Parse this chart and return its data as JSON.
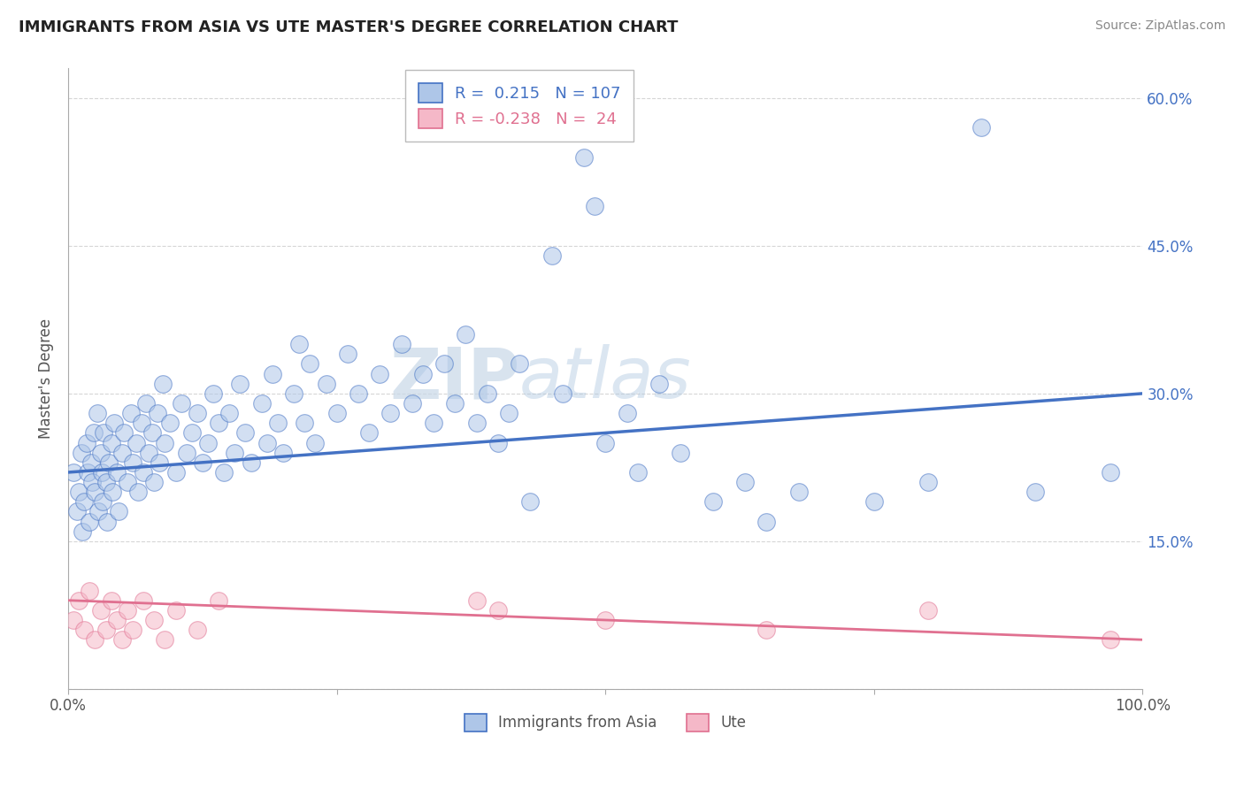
{
  "title": "IMMIGRANTS FROM ASIA VS UTE MASTER'S DEGREE CORRELATION CHART",
  "source_text": "Source: ZipAtlas.com",
  "ylabel": "Master's Degree",
  "xlim": [
    0,
    100
  ],
  "ylim": [
    0,
    63
  ],
  "yticks": [
    0,
    15,
    30,
    45,
    60
  ],
  "ytick_labels": [
    "",
    "15.0%",
    "30.0%",
    "45.0%",
    "60.0%"
  ],
  "blue_r": "0.215",
  "blue_n": "107",
  "pink_r": "-0.238",
  "pink_n": "24",
  "legend_label_blue": "Immigrants from Asia",
  "legend_label_pink": "Ute",
  "blue_color": "#aec6e8",
  "pink_color": "#f5b8c8",
  "blue_line_color": "#4472c4",
  "pink_line_color": "#e07090",
  "blue_scatter": [
    [
      0.5,
      22
    ],
    [
      0.8,
      18
    ],
    [
      1.0,
      20
    ],
    [
      1.2,
      24
    ],
    [
      1.3,
      16
    ],
    [
      1.5,
      19
    ],
    [
      1.7,
      25
    ],
    [
      1.8,
      22
    ],
    [
      2.0,
      17
    ],
    [
      2.1,
      23
    ],
    [
      2.2,
      21
    ],
    [
      2.4,
      26
    ],
    [
      2.5,
      20
    ],
    [
      2.7,
      28
    ],
    [
      2.8,
      18
    ],
    [
      3.0,
      24
    ],
    [
      3.1,
      22
    ],
    [
      3.2,
      19
    ],
    [
      3.3,
      26
    ],
    [
      3.5,
      21
    ],
    [
      3.6,
      17
    ],
    [
      3.8,
      23
    ],
    [
      4.0,
      25
    ],
    [
      4.1,
      20
    ],
    [
      4.3,
      27
    ],
    [
      4.5,
      22
    ],
    [
      4.7,
      18
    ],
    [
      5.0,
      24
    ],
    [
      5.2,
      26
    ],
    [
      5.5,
      21
    ],
    [
      5.8,
      28
    ],
    [
      6.0,
      23
    ],
    [
      6.3,
      25
    ],
    [
      6.5,
      20
    ],
    [
      6.8,
      27
    ],
    [
      7.0,
      22
    ],
    [
      7.2,
      29
    ],
    [
      7.5,
      24
    ],
    [
      7.8,
      26
    ],
    [
      8.0,
      21
    ],
    [
      8.3,
      28
    ],
    [
      8.5,
      23
    ],
    [
      8.8,
      31
    ],
    [
      9.0,
      25
    ],
    [
      9.5,
      27
    ],
    [
      10.0,
      22
    ],
    [
      10.5,
      29
    ],
    [
      11.0,
      24
    ],
    [
      11.5,
      26
    ],
    [
      12.0,
      28
    ],
    [
      12.5,
      23
    ],
    [
      13.0,
      25
    ],
    [
      13.5,
      30
    ],
    [
      14.0,
      27
    ],
    [
      14.5,
      22
    ],
    [
      15.0,
      28
    ],
    [
      15.5,
      24
    ],
    [
      16.0,
      31
    ],
    [
      16.5,
      26
    ],
    [
      17.0,
      23
    ],
    [
      18.0,
      29
    ],
    [
      18.5,
      25
    ],
    [
      19.0,
      32
    ],
    [
      19.5,
      27
    ],
    [
      20.0,
      24
    ],
    [
      21.0,
      30
    ],
    [
      21.5,
      35
    ],
    [
      22.0,
      27
    ],
    [
      22.5,
      33
    ],
    [
      23.0,
      25
    ],
    [
      24.0,
      31
    ],
    [
      25.0,
      28
    ],
    [
      26.0,
      34
    ],
    [
      27.0,
      30
    ],
    [
      28.0,
      26
    ],
    [
      29.0,
      32
    ],
    [
      30.0,
      28
    ],
    [
      31.0,
      35
    ],
    [
      32.0,
      29
    ],
    [
      33.0,
      32
    ],
    [
      34.0,
      27
    ],
    [
      35.0,
      33
    ],
    [
      36.0,
      29
    ],
    [
      37.0,
      36
    ],
    [
      38.0,
      27
    ],
    [
      39.0,
      30
    ],
    [
      40.0,
      25
    ],
    [
      41.0,
      28
    ],
    [
      42.0,
      33
    ],
    [
      43.0,
      19
    ],
    [
      45.0,
      44
    ],
    [
      46.0,
      30
    ],
    [
      48.0,
      54
    ],
    [
      49.0,
      49
    ],
    [
      50.0,
      25
    ],
    [
      52.0,
      28
    ],
    [
      53.0,
      22
    ],
    [
      55.0,
      31
    ],
    [
      57.0,
      24
    ],
    [
      60.0,
      19
    ],
    [
      63.0,
      21
    ],
    [
      65.0,
      17
    ],
    [
      68.0,
      20
    ],
    [
      75.0,
      19
    ],
    [
      80.0,
      21
    ],
    [
      85.0,
      57
    ],
    [
      90.0,
      20
    ],
    [
      97.0,
      22
    ]
  ],
  "pink_scatter": [
    [
      0.5,
      7
    ],
    [
      1.0,
      9
    ],
    [
      1.5,
      6
    ],
    [
      2.0,
      10
    ],
    [
      2.5,
      5
    ],
    [
      3.0,
      8
    ],
    [
      3.5,
      6
    ],
    [
      4.0,
      9
    ],
    [
      4.5,
      7
    ],
    [
      5.0,
      5
    ],
    [
      5.5,
      8
    ],
    [
      6.0,
      6
    ],
    [
      7.0,
      9
    ],
    [
      8.0,
      7
    ],
    [
      9.0,
      5
    ],
    [
      10.0,
      8
    ],
    [
      12.0,
      6
    ],
    [
      14.0,
      9
    ],
    [
      38.0,
      9
    ],
    [
      40.0,
      8
    ],
    [
      50.0,
      7
    ],
    [
      65.0,
      6
    ],
    [
      80.0,
      8
    ],
    [
      97.0,
      5
    ]
  ],
  "watermark_zip": "ZIP",
  "watermark_atlas": "atlas",
  "background_color": "#ffffff",
  "grid_color": "#cccccc"
}
